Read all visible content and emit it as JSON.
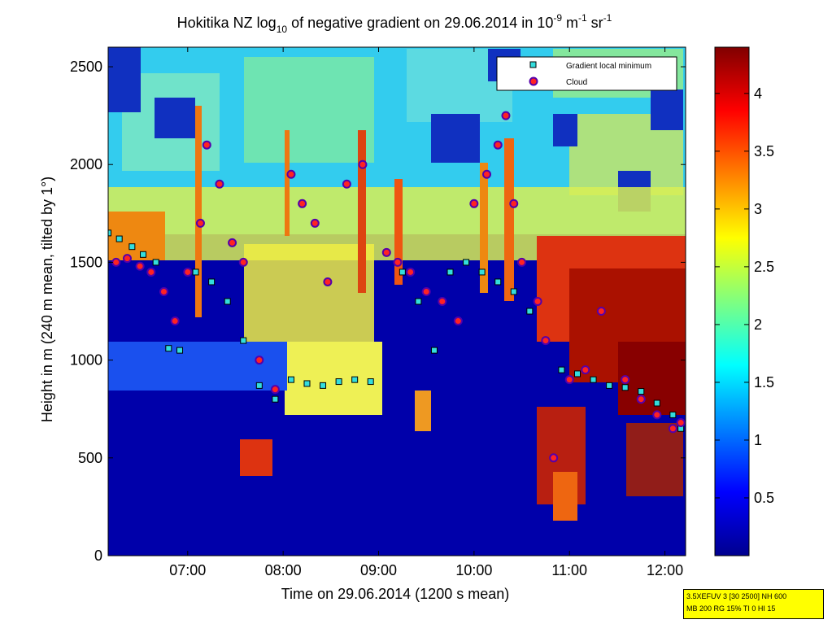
{
  "chart_data": {
    "type": "heatmap",
    "title": {
      "prefix": "Hokitika NZ log",
      "sub": "10",
      "middle": " of negative gradient on 29.06.2014 in 10",
      "exp1": "-9",
      "unit1": " m",
      "exp2": "-1",
      "unit2": " sr",
      "exp3": "-1"
    },
    "xlabel": "Time on 29.06.2014 (1200 s mean)",
    "ylabel": "Height in m (240 m mean, tilted by 1°)",
    "x_ticks": [
      "07:00",
      "08:00",
      "09:00",
      "10:00",
      "11:00",
      "12:00"
    ],
    "y_ticks": [
      "0",
      "500",
      "1000",
      "1500",
      "2000",
      "2500"
    ],
    "y_range": [
      0,
      2600
    ],
    "colorbar": {
      "range": [
        0,
        4.4
      ],
      "ticks": [
        "0.5",
        "1",
        "1.5",
        "2",
        "2.5",
        "3",
        "3.5",
        "4"
      ],
      "colormap": "jet"
    },
    "legend": {
      "position": "top-right",
      "entries": [
        {
          "label": "Gradient local minimum",
          "marker": "square",
          "color": "#33dddd"
        },
        {
          "label": "Cloud",
          "marker": "circle",
          "color": "#ff2222"
        }
      ]
    },
    "series": [
      {
        "name": "Gradient local minimum",
        "marker": "square",
        "x": [
          "06:10",
          "06:17",
          "06:25",
          "06:32",
          "06:40",
          "06:48",
          "06:55",
          "07:05",
          "07:15",
          "07:25",
          "07:35",
          "07:45",
          "07:55",
          "08:05",
          "08:15",
          "08:25",
          "08:35",
          "08:45",
          "08:55",
          "09:05",
          "09:15",
          "09:25",
          "09:35",
          "09:45",
          "09:55",
          "10:05",
          "10:15",
          "10:25",
          "10:35",
          "10:45",
          "10:55",
          "11:05",
          "11:15",
          "11:25",
          "11:35",
          "11:45",
          "11:55",
          "12:05",
          "12:10"
        ],
        "y": [
          1650,
          1620,
          1580,
          1540,
          1500,
          1060,
          1050,
          1450,
          1400,
          1300,
          1100,
          870,
          800,
          900,
          880,
          870,
          890,
          900,
          890,
          1550,
          1450,
          1300,
          1050,
          1450,
          1500,
          1450,
          1400,
          1350,
          1250,
          1100,
          950,
          930,
          900,
          870,
          860,
          840,
          780,
          720,
          650
        ]
      },
      {
        "name": "Cloud",
        "marker": "circle",
        "x": [
          "06:15",
          "06:22",
          "06:30",
          "06:37",
          "06:45",
          "06:52",
          "07:00",
          "07:08",
          "07:12",
          "07:20",
          "07:28",
          "07:35",
          "07:45",
          "07:55",
          "08:05",
          "08:12",
          "08:20",
          "08:28",
          "08:40",
          "08:50",
          "09:05",
          "09:12",
          "09:20",
          "09:30",
          "09:40",
          "09:50",
          "10:00",
          "10:08",
          "10:15",
          "10:20",
          "10:25",
          "10:30",
          "10:40",
          "10:45",
          "10:50",
          "11:00",
          "11:10",
          "11:20",
          "11:35",
          "11:45",
          "11:55",
          "12:05",
          "12:10"
        ],
        "y": [
          1500,
          1520,
          1480,
          1450,
          1350,
          1200,
          1450,
          1700,
          2100,
          1900,
          1600,
          1500,
          1000,
          850,
          1950,
          1800,
          1700,
          1400,
          1900,
          2000,
          1550,
          1500,
          1450,
          1350,
          1300,
          1200,
          1800,
          1950,
          2100,
          2250,
          1800,
          1500,
          1300,
          1100,
          500,
          900,
          950,
          1250,
          900,
          800,
          720,
          650,
          680
        ]
      }
    ],
    "stamp": {
      "line1": "3.5XEFUV 3 [30 2500] NH 600",
      "line2": "MB 200 RG 15% TI 0 HI 15"
    }
  }
}
